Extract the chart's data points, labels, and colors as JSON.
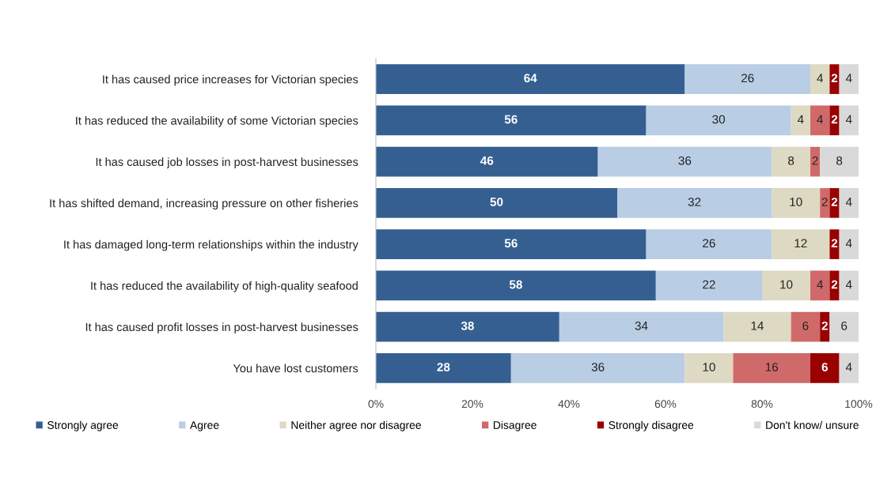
{
  "chart_data": {
    "type": "bar",
    "orientation": "horizontal",
    "stacked": true,
    "data_labels": true,
    "legend": "bottom",
    "grid": false,
    "categories": [
      "It has caused price increases for Victorian species",
      "It has reduced the availability of some Victorian species",
      "It has caused job losses in post-harvest businesses",
      "It has shifted demand, increasing pressure on other fisheries",
      "It has damaged long-term relationships within the industry",
      "It has reduced the availability of high-quality seafood",
      "It has caused profit losses in post-harvest businesses",
      "You have lost customers"
    ],
    "xlim": [
      0,
      100
    ],
    "xticks": [
      {
        "value": 0,
        "label": "0%"
      },
      {
        "value": 20,
        "label": "20%"
      },
      {
        "value": 40,
        "label": "40%"
      },
      {
        "value": 60,
        "label": "60%"
      },
      {
        "value": 80,
        "label": "80%"
      },
      {
        "value": 100,
        "label": "100%"
      }
    ],
    "series": [
      {
        "name": "Strongly agree",
        "color": "#355f91",
        "values": [
          64,
          56,
          46,
          50,
          56,
          58,
          38,
          28
        ]
      },
      {
        "name": "Agree",
        "color": "#b9cde5",
        "values": [
          26,
          30,
          36,
          32,
          26,
          22,
          34,
          36
        ]
      },
      {
        "name": "Neither agree nor disagree",
        "color": "#ddd9c3",
        "values": [
          4,
          4,
          8,
          10,
          12,
          10,
          14,
          10
        ]
      },
      {
        "name": "Disagree",
        "color": "#d06a6a",
        "values": [
          null,
          4,
          2,
          2,
          null,
          4,
          6,
          16
        ]
      },
      {
        "name": "Strongly disagree",
        "color": "#990000",
        "values": [
          2,
          2,
          null,
          2,
          2,
          2,
          2,
          6
        ]
      },
      {
        "name": "Don't know/ unsure",
        "color": "#d9d9d9",
        "values": [
          4,
          4,
          8,
          4,
          4,
          4,
          6,
          4
        ]
      }
    ]
  }
}
